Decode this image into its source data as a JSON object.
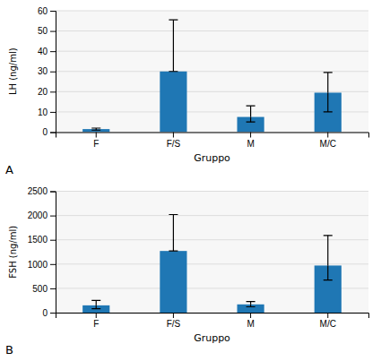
{
  "chart_data": [
    {
      "type": "bar",
      "categories": [
        "F",
        "F/S",
        "M",
        "M/C"
      ],
      "values": [
        1.5,
        30.0,
        7.5,
        19.5
      ],
      "errors_upper": [
        0.5,
        25.5,
        5.5,
        10.0
      ],
      "errors_lower": [
        0.5,
        0.0,
        2.5,
        9.5
      ],
      "ylabel": "LH (ng/ml)",
      "xlabel": "Gruppo",
      "ylim": [
        0,
        60
      ],
      "yticks": [
        0,
        10,
        20,
        30,
        40,
        50,
        60
      ],
      "annotation": "A",
      "grid": true
    },
    {
      "type": "bar",
      "categories": [
        "F",
        "F/S",
        "M",
        "M/C"
      ],
      "values": [
        150.0,
        1270.0,
        170.0,
        970.0
      ],
      "errors_upper": [
        100.0,
        750.0,
        60.0,
        620.0
      ],
      "errors_lower": [
        70.0,
        0.0,
        50.0,
        300.0
      ],
      "ylabel": "FSH (ng/ml)",
      "xlabel": "Gruppo",
      "ylim": [
        0,
        2500
      ],
      "yticks": [
        0,
        500,
        1000,
        1500,
        2000,
        2500
      ],
      "annotation": "B",
      "grid": true
    }
  ]
}
